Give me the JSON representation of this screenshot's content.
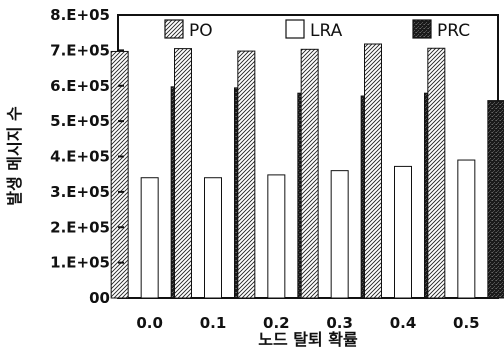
{
  "chart_data": {
    "type": "bar",
    "title": "",
    "xlabel": "노드 탈퇴 확률",
    "ylabel": "발생 메시지 수",
    "categories": [
      "0.0",
      "0.1",
      "0.2",
      "0.3",
      "0.4",
      "0.5"
    ],
    "series": [
      {
        "name": "PO",
        "values": [
          697000,
          705000,
          698000,
          703000,
          718000,
          706000
        ],
        "pattern": "diagonal-hatch"
      },
      {
        "name": "LRA",
        "values": [
          340000,
          340000,
          348000,
          360000,
          372000,
          390000
        ],
        "pattern": "white"
      },
      {
        "name": "PRC",
        "values": [
          597000,
          594000,
          579000,
          571000,
          579000,
          558000
        ],
        "pattern": "dark-speckle"
      }
    ],
    "ylim": [
      0,
      800000
    ],
    "yticks": [
      0,
      100000,
      200000,
      300000,
      400000,
      500000,
      600000,
      700000,
      800000
    ],
    "ytick_labels": [
      "00",
      "1.E+05",
      "2.E+05",
      "3.E+05",
      "4.E+05",
      "5.E+05",
      "6.E+05",
      "7.E+05",
      "8.E+05"
    ],
    "grid": false,
    "legend_position": "top"
  }
}
